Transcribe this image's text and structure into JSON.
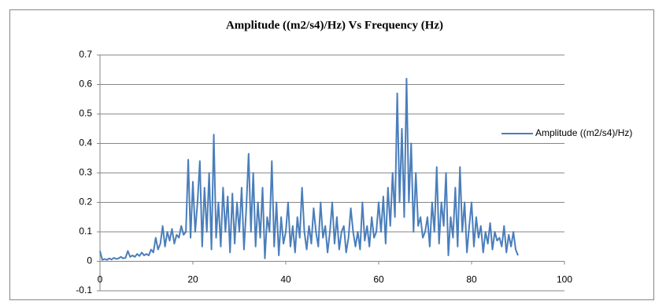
{
  "chart_data": {
    "type": "line",
    "title": "Amplitude ((m2/s4)/Hz) Vs Frequency (Hz)",
    "x": [
      0,
      0.5,
      1,
      1.5,
      2,
      2.5,
      3,
      3.5,
      4,
      4.5,
      5,
      5.5,
      6,
      6.5,
      7,
      7.5,
      8,
      8.5,
      9,
      9.5,
      10,
      10.5,
      11,
      11.5,
      12,
      12.5,
      13,
      13.5,
      14,
      14.5,
      15,
      15.5,
      16,
      16.5,
      17,
      17.5,
      18,
      18.5,
      19,
      19.5,
      20,
      20.5,
      21,
      21.5,
      22,
      22.5,
      23,
      23.5,
      24,
      24.5,
      25,
      25.5,
      26,
      26.5,
      27,
      27.5,
      28,
      28.5,
      29,
      29.5,
      30,
      30.5,
      31,
      31.5,
      32,
      32.5,
      33,
      33.5,
      34,
      34.5,
      35,
      35.5,
      36,
      36.5,
      37,
      37.5,
      38,
      38.5,
      39,
      39.5,
      40,
      40.5,
      41,
      41.5,
      42,
      42.5,
      43,
      43.5,
      44,
      44.5,
      45,
      45.5,
      46,
      46.5,
      47,
      47.5,
      48,
      48.5,
      49,
      49.5,
      50,
      50.5,
      51,
      51.5,
      52,
      52.5,
      53,
      53.5,
      54,
      54.5,
      55,
      55.5,
      56,
      56.5,
      57,
      57.5,
      58,
      58.5,
      59,
      59.5,
      60,
      60.5,
      61,
      61.5,
      62,
      62.5,
      63,
      63.5,
      64,
      64.5,
      65,
      65.5,
      66,
      66.5,
      67,
      67.5,
      68,
      68.5,
      69,
      69.5,
      70,
      70.5,
      71,
      71.5,
      72,
      72.5,
      73,
      73.5,
      74,
      74.5,
      75,
      75.5,
      76,
      76.5,
      77,
      77.5,
      78,
      78.5,
      79,
      79.5,
      80,
      80.5,
      81,
      81.5,
      82,
      82.5,
      83,
      83.5,
      84,
      84.5,
      85,
      85.5,
      86,
      86.5,
      87,
      87.5,
      88,
      88.5,
      89,
      89.5,
      90
    ],
    "series": [
      {
        "name": "Amplitude ((m2/s4)/Hz)",
        "color": "#4a7ebb",
        "values": [
          0.035,
          0.005,
          0.008,
          0.005,
          0.01,
          0.006,
          0.012,
          0.008,
          0.01,
          0.015,
          0.01,
          0.012,
          0.035,
          0.015,
          0.02,
          0.015,
          0.025,
          0.018,
          0.03,
          0.02,
          0.025,
          0.02,
          0.04,
          0.03,
          0.08,
          0.04,
          0.06,
          0.12,
          0.05,
          0.1,
          0.07,
          0.11,
          0.06,
          0.09,
          0.08,
          0.12,
          0.09,
          0.1,
          0.345,
          0.08,
          0.27,
          0.1,
          0.2,
          0.34,
          0.05,
          0.25,
          0.1,
          0.3,
          0.04,
          0.43,
          0.08,
          0.2,
          0.05,
          0.25,
          0.1,
          0.22,
          0.03,
          0.23,
          0.06,
          0.2,
          0.1,
          0.25,
          0.04,
          0.18,
          0.365,
          0.1,
          0.3,
          0.05,
          0.2,
          0.08,
          0.25,
          0.01,
          0.15,
          0.1,
          0.34,
          0.05,
          0.2,
          0.02,
          0.15,
          0.06,
          0.1,
          0.2,
          0.05,
          0.12,
          0.03,
          0.15,
          0.08,
          0.25,
          0.1,
          0.04,
          0.12,
          0.06,
          0.18,
          0.1,
          0.05,
          0.2,
          0.08,
          0.12,
          0.03,
          0.1,
          0.2,
          0.06,
          0.15,
          0.04,
          0.1,
          0.12,
          0.03,
          0.08,
          0.18,
          0.1,
          0.05,
          0.1,
          0.04,
          0.2,
          0.07,
          0.12,
          0.05,
          0.15,
          0.08,
          0.1,
          0.2,
          0.1,
          0.22,
          0.06,
          0.25,
          0.12,
          0.3,
          0.15,
          0.57,
          0.2,
          0.45,
          0.15,
          0.62,
          0.2,
          0.4,
          0.1,
          0.3,
          0.12,
          0.15,
          0.08,
          0.1,
          0.15,
          0.05,
          0.2,
          0.1,
          0.32,
          0.06,
          0.2,
          0.12,
          0.3,
          0.02,
          0.15,
          0.08,
          0.25,
          0.05,
          0.32,
          0.1,
          0.2,
          0.03,
          0.12,
          0.2,
          0.05,
          0.15,
          0.08,
          0.12,
          0.03,
          0.1,
          0.06,
          0.13,
          0.04,
          0.1,
          0.07,
          0.08,
          0.05,
          0.12,
          0.03,
          0.09,
          0.05,
          0.1,
          0.04,
          0.02
        ]
      }
    ],
    "xlim": [
      0,
      100
    ],
    "xticks": [
      0,
      20,
      40,
      60,
      80,
      100
    ],
    "ylim": [
      -0.1,
      0.7
    ],
    "yticks": [
      -0.1,
      0,
      0.1,
      0.2,
      0.3,
      0.4,
      0.5,
      0.6,
      0.7
    ],
    "grid": true,
    "legend": "right"
  }
}
